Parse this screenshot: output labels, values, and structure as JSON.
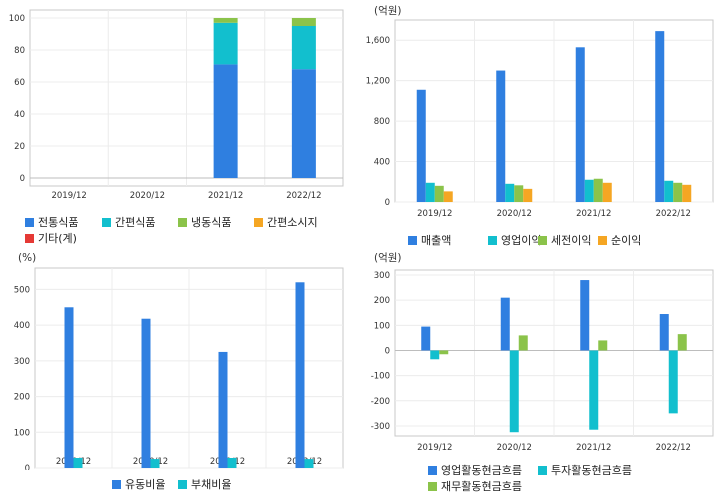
{
  "chart_data": [
    {
      "type": "bar",
      "stacked": true,
      "unit": "",
      "categories": [
        "2019/12",
        "2020/12",
        "2021/12",
        "2022/12"
      ],
      "ylim": [
        -5,
        105
      ],
      "yticks": [
        0,
        20,
        40,
        60,
        80,
        100
      ],
      "series": [
        {
          "name": "전통식품",
          "color": "#2f7fe0",
          "values": [
            0,
            0,
            71,
            68
          ]
        },
        {
          "name": "간편식품",
          "color": "#12bfce",
          "values": [
            0,
            0,
            26,
            27
          ]
        },
        {
          "name": "냉동식품",
          "color": "#8bc34a",
          "values": [
            0,
            0,
            3,
            5
          ]
        },
        {
          "name": "간편소시지",
          "color": "#f5a623",
          "values": [
            0,
            0,
            0,
            0
          ]
        },
        {
          "name": "기타(계)",
          "color": "#e53935",
          "values": [
            0,
            0,
            0,
            0
          ]
        }
      ],
      "grid": true,
      "legend": "bottom"
    },
    {
      "type": "bar",
      "unit": "(억원)",
      "categories": [
        "2019/12",
        "2020/12",
        "2021/12",
        "2022/12"
      ],
      "ylim": [
        0,
        1800
      ],
      "yticks": [
        0,
        400,
        800,
        1200,
        1600
      ],
      "ytick_labels": [
        "0",
        "400",
        "800",
        "1,200",
        "1,600"
      ],
      "series": [
        {
          "name": "매출액",
          "color": "#2f7fe0",
          "values": [
            1110,
            1300,
            1530,
            1690
          ]
        },
        {
          "name": "영업이익",
          "color": "#12bfce",
          "values": [
            190,
            180,
            220,
            210
          ]
        },
        {
          "name": "세전이익",
          "color": "#8bc34a",
          "values": [
            160,
            165,
            230,
            190
          ]
        },
        {
          "name": "순이익",
          "color": "#f5a623",
          "values": [
            105,
            130,
            190,
            170
          ]
        }
      ],
      "grid": true,
      "legend": "bottom"
    },
    {
      "type": "bar",
      "unit": "(%)",
      "categories": [
        "2019/12",
        "2020/12",
        "2021/12",
        "2022/12"
      ],
      "ylim": [
        0,
        560
      ],
      "yticks": [
        0,
        100,
        200,
        300,
        400,
        500
      ],
      "series": [
        {
          "name": "유동비율",
          "color": "#2f7fe0",
          "values": [
            450,
            418,
            325,
            520
          ]
        },
        {
          "name": "부채비율",
          "color": "#12bfce",
          "values": [
            28,
            25,
            28,
            25
          ]
        }
      ],
      "grid": true,
      "legend": "bottom"
    },
    {
      "type": "bar",
      "unit": "(억원)",
      "categories": [
        "2019/12",
        "2020/12",
        "2021/12",
        "2022/12"
      ],
      "ylim": [
        -340,
        320
      ],
      "yticks": [
        -300,
        -200,
        -100,
        0,
        100,
        200,
        300
      ],
      "series": [
        {
          "name": "영업활동현금흐름",
          "color": "#2f7fe0",
          "values": [
            95,
            210,
            280,
            145
          ]
        },
        {
          "name": "투자활동현금흐름",
          "color": "#12bfce",
          "values": [
            -35,
            -325,
            -315,
            -250
          ]
        },
        {
          "name": "재무활동현금흐름",
          "color": "#8bc34a",
          "values": [
            -15,
            60,
            40,
            65
          ]
        }
      ],
      "grid": true,
      "legend": "bottom"
    }
  ]
}
